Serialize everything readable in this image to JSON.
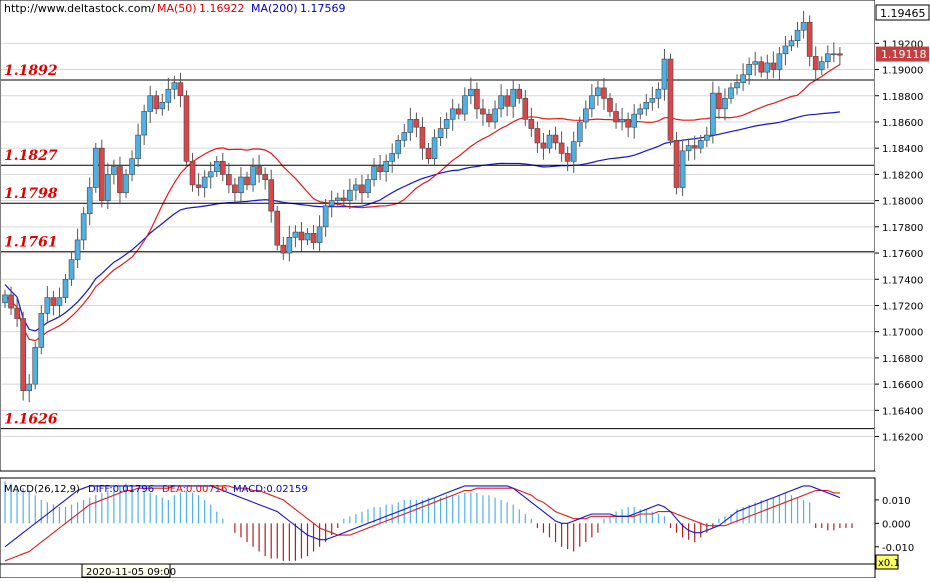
{
  "chart_data": [
    {
      "type": "candlestick",
      "panel": "price",
      "source_text": "http://www.deltastock.com/",
      "indicators": [
        {
          "label": "MA(50)",
          "value": "1.16922",
          "color": "#e00000"
        },
        {
          "label": "MA(200)",
          "value": "1.17569",
          "color": "#0000cc"
        }
      ],
      "current_price": "1.19118",
      "top_price_label": "1.19465",
      "ylim": [
        1.1596,
        1.195
      ],
      "y_ticks": [
        "1.19200",
        "1.19000",
        "1.18800",
        "1.18600",
        "1.18400",
        "1.18200",
        "1.18000",
        "1.17800",
        "1.17600",
        "1.17400",
        "1.17200",
        "1.17000",
        "1.16800",
        "1.16600",
        "1.16400",
        "1.16200"
      ],
      "levels": [
        {
          "label": "1.1892",
          "value": 1.1892
        },
        {
          "label": "1.1827",
          "value": 1.1827
        },
        {
          "label": "1.1798",
          "value": 1.1798
        },
        {
          "label": "1.1761",
          "value": 1.1761
        },
        {
          "label": "1.1626",
          "value": 1.1626
        }
      ],
      "closes": [
        1.1728,
        1.1718,
        1.171,
        1.1655,
        1.166,
        1.1688,
        1.1714,
        1.1726,
        1.172,
        1.1726,
        1.174,
        1.1755,
        1.177,
        1.179,
        1.181,
        1.184,
        1.18,
        1.182,
        1.1826,
        1.1806,
        1.182,
        1.1832,
        1.185,
        1.1868,
        1.188,
        1.187,
        1.1875,
        1.1885,
        1.189,
        1.188,
        1.183,
        1.1812,
        1.181,
        1.1818,
        1.1822,
        1.183,
        1.182,
        1.1812,
        1.1806,
        1.1818,
        1.1812,
        1.1826,
        1.182,
        1.1816,
        1.1792,
        1.1766,
        1.176,
        1.1772,
        1.1776,
        1.177,
        1.1775,
        1.1768,
        1.178,
        1.1796,
        1.18,
        1.1802,
        1.18,
        1.1808,
        1.1812,
        1.1806,
        1.1816,
        1.1826,
        1.1822,
        1.183,
        1.1836,
        1.1846,
        1.1852,
        1.1862,
        1.1856,
        1.184,
        1.1832,
        1.1848,
        1.1855,
        1.1862,
        1.187,
        1.1866,
        1.188,
        1.1885,
        1.187,
        1.1866,
        1.186,
        1.187,
        1.188,
        1.1872,
        1.1885,
        1.1878,
        1.1862,
        1.1855,
        1.1844,
        1.184,
        1.185,
        1.1844,
        1.1836,
        1.183,
        1.1845,
        1.186,
        1.187,
        1.188,
        1.1886,
        1.1878,
        1.1868,
        1.186,
        1.1862,
        1.1856,
        1.1866,
        1.187,
        1.1875,
        1.1878,
        1.1885,
        1.1908,
        1.1846,
        1.181,
        1.1838,
        1.1842,
        1.184,
        1.1846,
        1.185,
        1.1882,
        1.187,
        1.1878,
        1.1886,
        1.189,
        1.1896,
        1.1904,
        1.1906,
        1.1898,
        1.1905,
        1.19,
        1.1912,
        1.1918,
        1.1922,
        1.193,
        1.1936,
        1.191,
        1.19,
        1.1906,
        1.1912,
        1.1912,
        1.1911
      ]
    },
    {
      "type": "macd",
      "panel": "oscillator",
      "title": "MACD(26,12,9)",
      "indicators": [
        {
          "label": "DIFF:0.01796",
          "color": "#0000cc"
        },
        {
          "label": "DEA:0.00716",
          "color": "#e00000"
        },
        {
          "label": "MACD:0.02159",
          "color": "#0000cc"
        }
      ],
      "ylim": [
        -0.0165,
        0.0185
      ],
      "y_ticks": [
        "0.010",
        "0.000",
        "-0.010"
      ],
      "scale_badge": "x0.1",
      "date_label": "2020-11-05 09:00",
      "diff": [
        -0.01,
        -0.008,
        -0.006,
        -0.004,
        -0.002,
        0.0,
        0.002,
        0.004,
        0.006,
        0.008,
        0.01,
        0.012,
        0.014,
        0.015,
        0.016,
        0.016,
        0.016,
        0.016,
        0.016,
        0.016,
        0.016,
        0.016,
        0.016,
        0.016,
        0.016,
        0.016,
        0.016,
        0.016,
        0.016,
        0.016,
        0.016,
        0.016,
        0.016,
        0.016,
        0.016,
        0.015,
        0.014,
        0.013,
        0.012,
        0.011,
        0.01,
        0.009,
        0.008,
        0.007,
        0.006,
        0.005,
        0.003,
        0.001,
        -0.001,
        -0.003,
        -0.005,
        -0.006,
        -0.007,
        -0.007,
        -0.006,
        -0.005,
        -0.004,
        -0.003,
        -0.002,
        -0.001,
        0.0,
        0.001,
        0.002,
        0.003,
        0.004,
        0.005,
        0.006,
        0.007,
        0.008,
        0.009,
        0.01,
        0.011,
        0.012,
        0.013,
        0.014,
        0.015,
        0.016,
        0.016,
        0.016,
        0.016,
        0.016,
        0.016,
        0.016,
        0.016,
        0.015,
        0.013,
        0.011,
        0.009,
        0.007,
        0.005,
        0.003,
        0.001,
        0.0,
        0.0,
        0.001,
        0.002,
        0.003,
        0.004,
        0.004,
        0.004,
        0.004,
        0.003,
        0.003,
        0.003,
        0.004,
        0.005,
        0.006,
        0.007,
        0.008,
        0.007,
        0.005,
        0.002,
        -0.001,
        -0.003,
        -0.004,
        -0.004,
        -0.003,
        -0.002,
        -0.001,
        0.001,
        0.003,
        0.005,
        0.006,
        0.007,
        0.008,
        0.009,
        0.01,
        0.011,
        0.012,
        0.013,
        0.014,
        0.015,
        0.016,
        0.016,
        0.015,
        0.014,
        0.013,
        0.012,
        0.011
      ],
      "dea": [
        -0.016,
        -0.015,
        -0.014,
        -0.013,
        -0.012,
        -0.01,
        -0.008,
        -0.006,
        -0.004,
        -0.002,
        0.0,
        0.002,
        0.004,
        0.006,
        0.008,
        0.009,
        0.01,
        0.011,
        0.012,
        0.013,
        0.014,
        0.014,
        0.015,
        0.015,
        0.015,
        0.015,
        0.015,
        0.015,
        0.016,
        0.016,
        0.016,
        0.016,
        0.016,
        0.016,
        0.016,
        0.016,
        0.016,
        0.016,
        0.015,
        0.015,
        0.015,
        0.014,
        0.014,
        0.013,
        0.012,
        0.011,
        0.01,
        0.008,
        0.006,
        0.004,
        0.002,
        0.0,
        -0.002,
        -0.003,
        -0.004,
        -0.005,
        -0.005,
        -0.005,
        -0.004,
        -0.003,
        -0.002,
        -0.001,
        0.0,
        0.001,
        0.002,
        0.003,
        0.004,
        0.005,
        0.006,
        0.007,
        0.008,
        0.009,
        0.01,
        0.011,
        0.012,
        0.013,
        0.014,
        0.014,
        0.015,
        0.015,
        0.015,
        0.015,
        0.015,
        0.015,
        0.015,
        0.014,
        0.013,
        0.012,
        0.01,
        0.009,
        0.007,
        0.005,
        0.004,
        0.003,
        0.002,
        0.002,
        0.002,
        0.003,
        0.003,
        0.003,
        0.003,
        0.003,
        0.003,
        0.003,
        0.003,
        0.004,
        0.004,
        0.004,
        0.005,
        0.005,
        0.005,
        0.004,
        0.003,
        0.002,
        0.001,
        0.0,
        -0.001,
        -0.001,
        -0.001,
        -0.001,
        0.0,
        0.001,
        0.002,
        0.003,
        0.004,
        0.005,
        0.006,
        0.007,
        0.008,
        0.009,
        0.01,
        0.011,
        0.012,
        0.013,
        0.014,
        0.014,
        0.014,
        0.013,
        0.013
      ],
      "hist": [
        0.018,
        0.017,
        0.016,
        0.015,
        0.014,
        0.012,
        0.01,
        0.009,
        0.008,
        0.007,
        0.007,
        0.008,
        0.009,
        0.01,
        0.011,
        0.012,
        0.013,
        0.014,
        0.015,
        0.016,
        0.017,
        0.016,
        0.015,
        0.014,
        0.013,
        0.012,
        0.011,
        0.01,
        0.012,
        0.013,
        0.014,
        0.013,
        0.012,
        0.01,
        0.008,
        0.005,
        0.002,
        0.0,
        -0.004,
        -0.006,
        -0.008,
        -0.01,
        -0.012,
        -0.014,
        -0.015,
        -0.015,
        -0.016,
        -0.016,
        -0.016,
        -0.015,
        -0.014,
        -0.012,
        -0.01,
        -0.008,
        -0.005,
        -0.002,
        0.002,
        0.003,
        0.004,
        0.005,
        0.006,
        0.007,
        0.007,
        0.008,
        0.008,
        0.009,
        0.01,
        0.01,
        0.01,
        0.01,
        0.011,
        0.011,
        0.011,
        0.012,
        0.012,
        0.012,
        0.013,
        0.013,
        0.013,
        0.012,
        0.012,
        0.011,
        0.01,
        0.009,
        0.008,
        0.006,
        0.004,
        0.002,
        -0.002,
        -0.004,
        -0.006,
        -0.008,
        -0.01,
        -0.011,
        -0.012,
        -0.01,
        -0.008,
        -0.006,
        -0.004,
        0.002,
        0.003,
        0.005,
        0.006,
        0.007,
        0.007,
        0.006,
        0.006,
        0.005,
        0.004,
        0.003,
        -0.002,
        -0.004,
        -0.006,
        -0.007,
        -0.008,
        -0.006,
        -0.004,
        -0.002,
        0.002,
        0.003,
        0.004,
        0.006,
        0.007,
        0.008,
        0.009,
        0.01,
        0.01,
        0.011,
        0.012,
        0.013,
        0.012,
        0.011,
        0.01,
        0.009,
        -0.002,
        -0.002,
        -0.003,
        -0.003,
        -0.002,
        -0.002,
        -0.002
      ]
    }
  ]
}
